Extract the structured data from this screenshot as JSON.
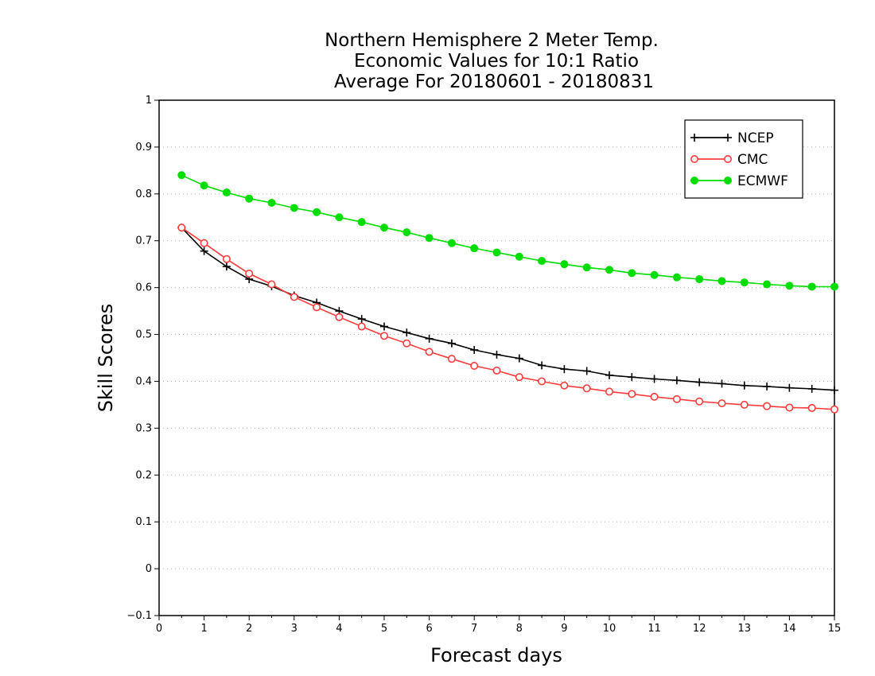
{
  "chart_data": {
    "type": "line",
    "title_lines": [
      "Northern Hemisphere 2 Meter Temp.",
      "Economic Values for 10:1 Ratio",
      "Average For 20180601 - 20180831"
    ],
    "xlabel": "Forecast days",
    "ylabel": "Skill Scores",
    "xlim": [
      0,
      15
    ],
    "ylim": [
      -0.1,
      1
    ],
    "x_ticks": [
      "0",
      "1",
      "2",
      "3",
      "4",
      "5",
      "6",
      "7",
      "8",
      "9",
      "10",
      "11",
      "12",
      "13",
      "14",
      "15"
    ],
    "y_ticks": [
      "−0.1",
      "0",
      "0.1",
      "0.2",
      "0.3",
      "0.4",
      "0.5",
      "0.6",
      "0.7",
      "0.8",
      "0.9",
      "1"
    ],
    "grid": "horizontal dotted",
    "legend_position": "top-right",
    "x": [
      0.5,
      1,
      1.5,
      2,
      2.5,
      3,
      3.5,
      4,
      4.5,
      5,
      5.5,
      6,
      6.5,
      7,
      7.5,
      8,
      8.5,
      9,
      9.5,
      10,
      10.5,
      11,
      11.5,
      12,
      12.5,
      13,
      13.5,
      14,
      14.5,
      15
    ],
    "series": [
      {
        "name": "NCEP",
        "color": "#000000",
        "marker": "plus",
        "values": [
          0.728,
          0.678,
          0.645,
          0.618,
          0.603,
          0.583,
          0.568,
          0.55,
          0.533,
          0.517,
          0.504,
          0.491,
          0.481,
          0.467,
          0.457,
          0.449,
          0.434,
          0.426,
          0.422,
          0.413,
          0.409,
          0.405,
          0.402,
          0.398,
          0.395,
          0.391,
          0.389,
          0.386,
          0.384,
          0.381
        ]
      },
      {
        "name": "CMC",
        "color": "#ff3c3c",
        "marker": "open-circle",
        "values": [
          0.728,
          0.695,
          0.661,
          0.63,
          0.607,
          0.58,
          0.558,
          0.537,
          0.517,
          0.497,
          0.481,
          0.463,
          0.448,
          0.433,
          0.423,
          0.409,
          0.4,
          0.391,
          0.385,
          0.378,
          0.373,
          0.367,
          0.362,
          0.357,
          0.353,
          0.35,
          0.347,
          0.344,
          0.343,
          0.34
        ]
      },
      {
        "name": "ECMWF",
        "color": "#00dd00",
        "marker": "filled-circle",
        "values": [
          0.84,
          0.818,
          0.803,
          0.79,
          0.781,
          0.77,
          0.761,
          0.75,
          0.74,
          0.728,
          0.718,
          0.706,
          0.695,
          0.684,
          0.675,
          0.666,
          0.657,
          0.65,
          0.643,
          0.638,
          0.631,
          0.627,
          0.622,
          0.618,
          0.614,
          0.611,
          0.607,
          0.604,
          0.602,
          0.602
        ]
      }
    ]
  }
}
